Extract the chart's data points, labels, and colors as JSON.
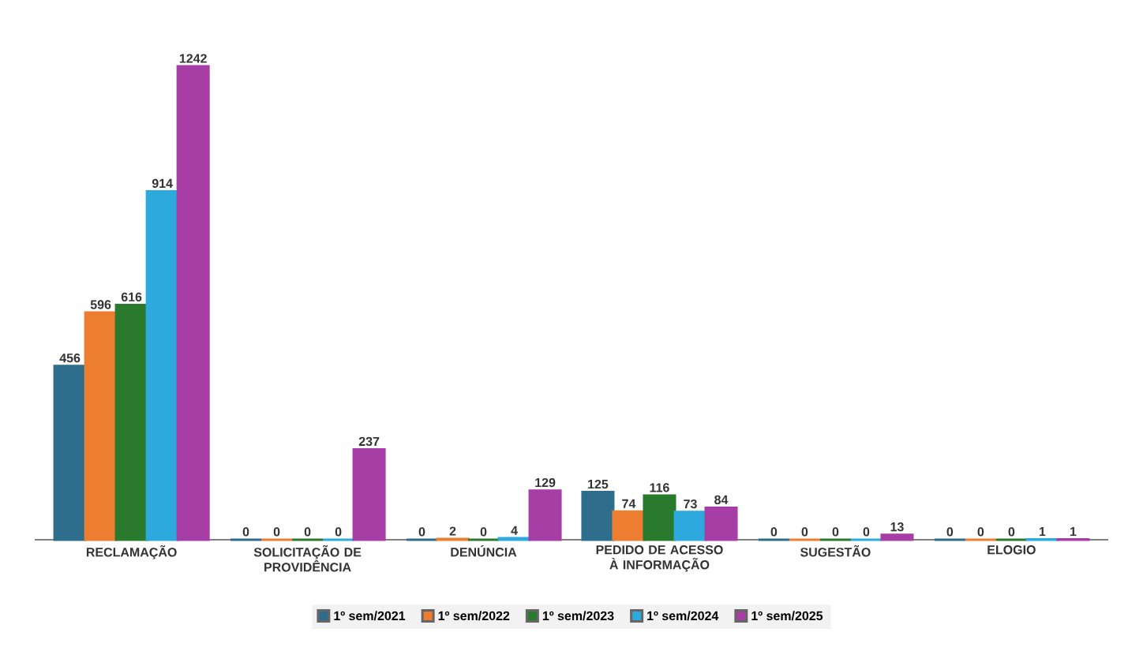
{
  "chart_data": {
    "type": "bar",
    "categories": [
      "RECLAMAÇÃO",
      "SOLICITAÇÃO  DE PROVIDÊNCIA",
      "DENÚNCIA",
      "PEDIDO DE ACESSO À INFORMAÇÃO",
      "SUGESTÃO",
      "ELOGIO"
    ],
    "series": [
      {
        "name": "1º sem/2021",
        "color": "#2f6d8c",
        "values": [
          456,
          0,
          0,
          125,
          0,
          0
        ]
      },
      {
        "name": "1º sem/2022",
        "color": "#ed7d31",
        "values": [
          596,
          0,
          2,
          74,
          0,
          0
        ]
      },
      {
        "name": "1º sem/2023",
        "color": "#2a7a2e",
        "values": [
          616,
          0,
          0,
          116,
          0,
          0
        ]
      },
      {
        "name": "1º sem/2024",
        "color": "#2ea9dd",
        "values": [
          914,
          0,
          4,
          73,
          0,
          1
        ]
      },
      {
        "name": "1º sem/2025",
        "color": "#a63ea6",
        "values": [
          1242,
          237,
          129,
          84,
          13,
          1
        ]
      }
    ],
    "data_labels": true,
    "legend": "bottom"
  }
}
